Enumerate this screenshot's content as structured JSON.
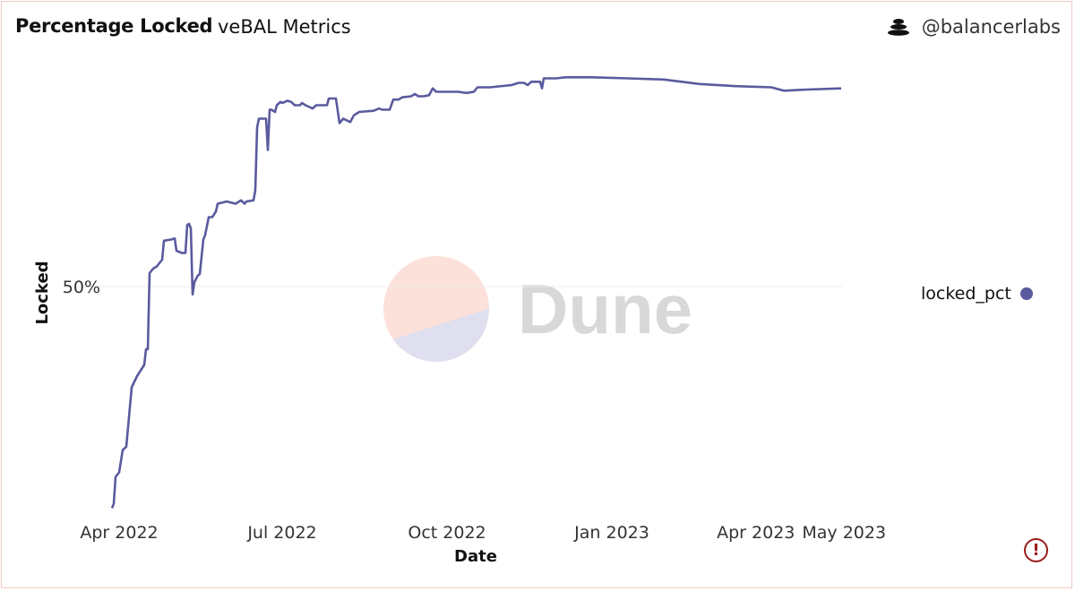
{
  "header": {
    "title": "Percentage Locked",
    "subtitle": "veBAL Metrics",
    "brand_icon": "balancer-stack-icon",
    "brand": "@balancerlabs"
  },
  "watermark": "Dune",
  "warning_icon": "exclamation-circle-icon",
  "colors": {
    "line": "#5a5a9e",
    "border": "#f2c9c6",
    "warning": "#9b1c1c"
  },
  "chart_data": {
    "type": "line",
    "title": "Percentage Locked",
    "xlabel": "Date",
    "ylabel": "Locked",
    "x_unit": "days since 2022-04-01",
    "xlim": [
      -4,
      403
    ],
    "ylim": [
      30,
      70
    ],
    "yticks": [
      {
        "value": 50,
        "label": "50%"
      }
    ],
    "xticks": [
      {
        "value": 0,
        "label": "Apr 2022"
      },
      {
        "value": 91,
        "label": "Jul 2022"
      },
      {
        "value": 183,
        "label": "Oct 2022"
      },
      {
        "value": 275,
        "label": "Jan 2023"
      },
      {
        "value": 365,
        "label": "Apr 2023"
      },
      {
        "value": 395,
        "label": "May 2023"
      }
    ],
    "grid": "horizontal",
    "legend_position": "right",
    "series": [
      {
        "name": "locked_pct",
        "color": "#5a5a9e",
        "x": [
          -4,
          -3,
          -2,
          0,
          2,
          4,
          7,
          10,
          14,
          15,
          16,
          17,
          19,
          21,
          23,
          24,
          25,
          29,
          31,
          32,
          35,
          37,
          38,
          39,
          40,
          41,
          42,
          44,
          45,
          47,
          48,
          50,
          52,
          54,
          55,
          60,
          65,
          68,
          70,
          71,
          75,
          76,
          77,
          78,
          82,
          83,
          84,
          85,
          87,
          88,
          90,
          91,
          94,
          96,
          98,
          101,
          102,
          104,
          108,
          110,
          116,
          117,
          121,
          123,
          125,
          129,
          131,
          134,
          142,
          145,
          147,
          151,
          153,
          156,
          158,
          163,
          165,
          167,
          170,
          173,
          175,
          177,
          184,
          189,
          194,
          198,
          200,
          202,
          207,
          219,
          223,
          226,
          228,
          230,
          235,
          236,
          237,
          242,
          244,
          249,
          254,
          264,
          284,
          304,
          314,
          324,
          344,
          364,
          371,
          384,
          403
        ],
        "y": [
          30.2,
          30.6,
          33.0,
          33.4,
          35.4,
          35.7,
          41.0,
          42.0,
          43.0,
          44.4,
          44.4,
          51.2,
          51.6,
          51.8,
          52.2,
          52.4,
          54.1,
          54.2,
          54.3,
          53.2,
          53.0,
          53.0,
          55.5,
          55.6,
          55.2,
          49.3,
          50.4,
          51.0,
          51.1,
          54.2,
          54.6,
          56.2,
          56.2,
          56.7,
          57.4,
          57.6,
          57.4,
          57.7,
          57.4,
          57.6,
          57.7,
          58.6,
          64.2,
          65.0,
          65.0,
          62.2,
          65.8,
          65.8,
          65.6,
          66.2,
          66.5,
          66.4,
          66.6,
          66.5,
          66.2,
          66.2,
          66.4,
          66.2,
          65.9,
          66.2,
          66.2,
          66.8,
          66.8,
          64.6,
          65.0,
          64.7,
          65.3,
          65.6,
          65.7,
          65.9,
          65.8,
          65.8,
          66.7,
          66.7,
          66.9,
          67.0,
          67.2,
          67.0,
          67.0,
          67.1,
          67.7,
          67.4,
          67.4,
          67.4,
          67.3,
          67.4,
          67.8,
          67.8,
          67.8,
          68.0,
          68.2,
          68.2,
          68.0,
          68.3,
          68.3,
          67.7,
          68.6,
          68.6,
          68.6,
          68.7,
          68.7,
          68.7,
          68.6,
          68.5,
          68.3,
          68.1,
          67.9,
          67.8,
          67.5,
          67.6,
          67.7
        ]
      }
    ]
  }
}
